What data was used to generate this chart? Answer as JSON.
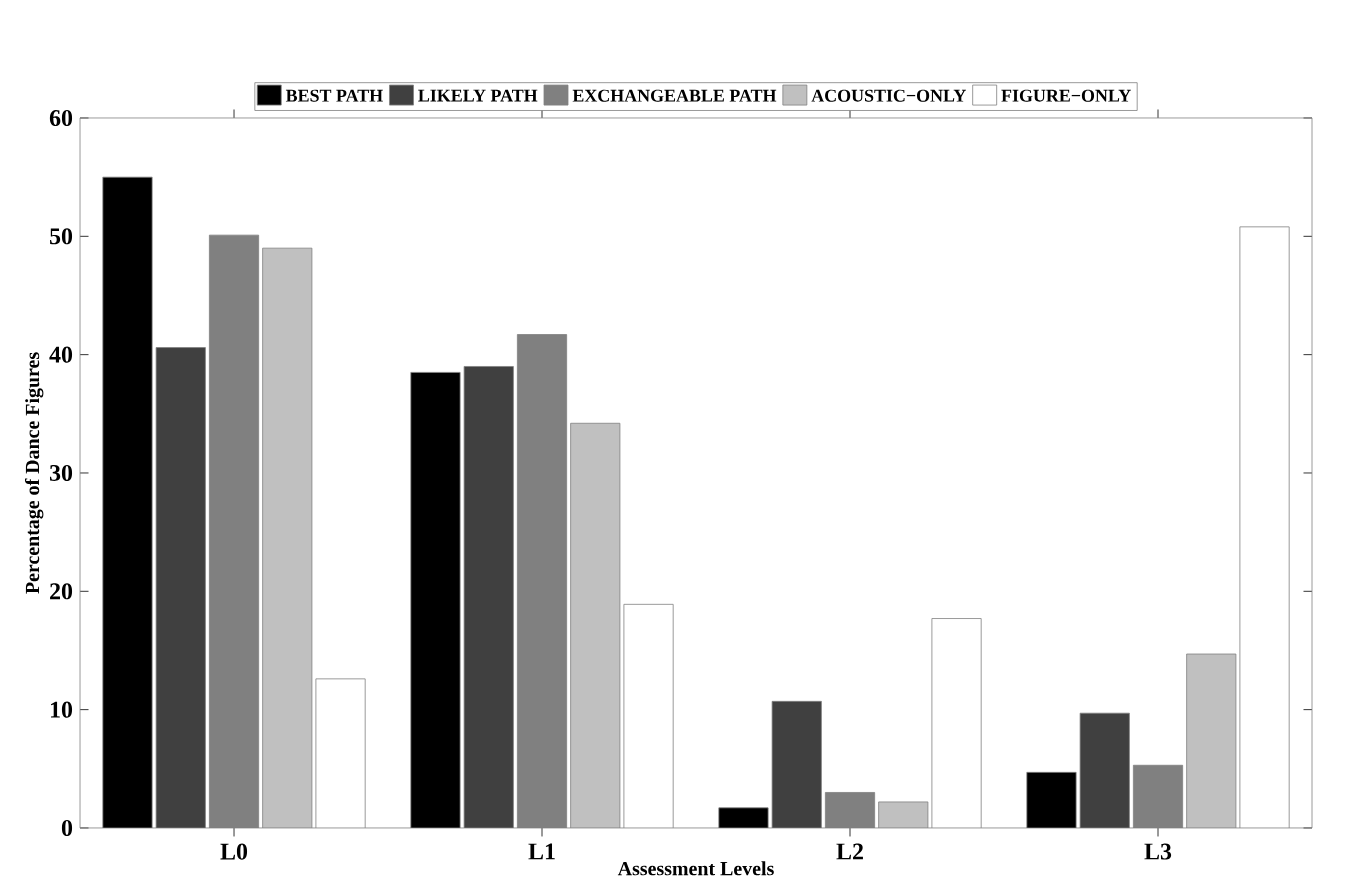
{
  "chart_data": {
    "type": "bar",
    "xlabel": "Assessment Levels",
    "ylabel": "Percentage of Dance Figures",
    "categories": [
      "L0",
      "L1",
      "L2",
      "L3"
    ],
    "series": [
      {
        "name": "BEST PATH",
        "color": "#000000",
        "values": [
          55.0,
          38.5,
          1.7,
          4.7
        ]
      },
      {
        "name": "LIKELY PATH",
        "color": "#404040",
        "values": [
          40.6,
          39.0,
          10.7,
          9.7
        ]
      },
      {
        "name": "EXCHANGEABLE PATH",
        "color": "#808080",
        "values": [
          50.1,
          41.7,
          3.0,
          5.3
        ]
      },
      {
        "name": "ACOUSTIC−ONLY",
        "color": "#c0c0c0",
        "values": [
          49.0,
          34.2,
          2.2,
          14.7
        ]
      },
      {
        "name": "FIGURE−ONLY",
        "color": "#ffffff",
        "values": [
          12.6,
          18.9,
          17.7,
          50.8
        ]
      }
    ],
    "ylim": [
      0,
      60
    ],
    "yticks": [
      0,
      10,
      20,
      30,
      40,
      50,
      60
    ],
    "legend": "top",
    "grid": false
  }
}
